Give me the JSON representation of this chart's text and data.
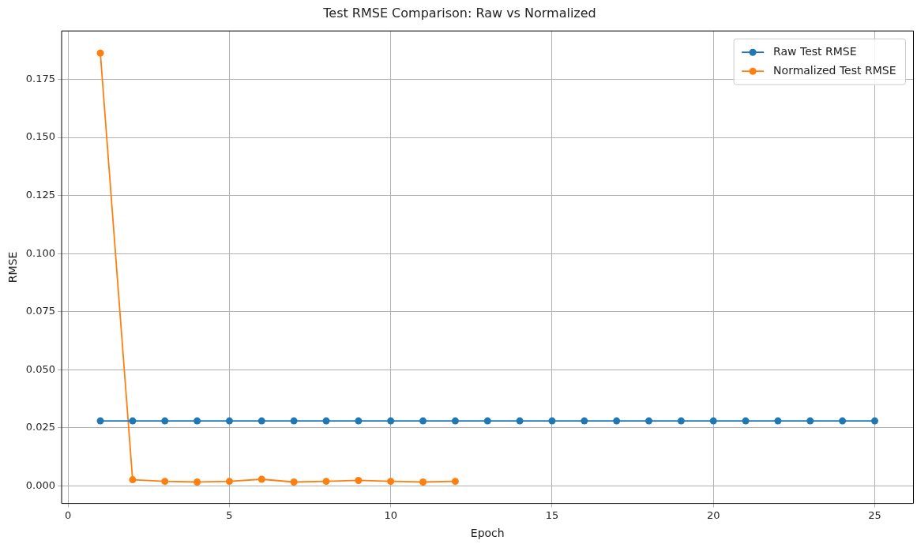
{
  "chart_data": {
    "type": "line",
    "title": "Test RMSE Comparison: Raw vs Normalized",
    "xlabel": "Epoch",
    "ylabel": "RMSE",
    "xlim": [
      -0.2,
      26.2
    ],
    "xticks": [
      0,
      5,
      10,
      15,
      20,
      25
    ],
    "ylim": [
      -0.0075,
      0.1958
    ],
    "yticks": [
      {
        "value": 0,
        "label": "0.000"
      },
      {
        "value": 0.025,
        "label": "0.025"
      },
      {
        "value": 0.05,
        "label": "0.050"
      },
      {
        "value": 0.075,
        "label": "0.075"
      },
      {
        "value": 0.1,
        "label": "0.100"
      },
      {
        "value": 0.125,
        "label": "0.125"
      },
      {
        "value": 0.15,
        "label": "0.150"
      },
      {
        "value": 0.175,
        "label": "0.175"
      }
    ],
    "grid": true,
    "legend": "top right",
    "marker": "circle",
    "line_style": "solid",
    "series": [
      {
        "name": "Raw Test RMSE",
        "color": "#1f77b4",
        "x": [
          1,
          2,
          3,
          4,
          5,
          6,
          7,
          8,
          9,
          10,
          11,
          12,
          13,
          14,
          15,
          16,
          17,
          18,
          19,
          20,
          21,
          22,
          23,
          24,
          25
        ],
        "values": [
          0.028,
          0.028,
          0.028,
          0.028,
          0.028,
          0.028,
          0.028,
          0.028,
          0.028,
          0.028,
          0.028,
          0.028,
          0.028,
          0.028,
          0.028,
          0.028,
          0.028,
          0.028,
          0.028,
          0.028,
          0.028,
          0.028,
          0.028,
          0.028,
          0.028
        ]
      },
      {
        "name": "Normalized Test RMSE",
        "color": "#ff7f0e",
        "x": [
          1,
          2,
          3,
          4,
          5,
          6,
          7,
          8,
          9,
          10,
          11,
          12
        ],
        "values": [
          0.1863,
          0.0027,
          0.002,
          0.0017,
          0.002,
          0.0029,
          0.0017,
          0.002,
          0.0024,
          0.002,
          0.0017,
          0.002
        ]
      }
    ]
  }
}
